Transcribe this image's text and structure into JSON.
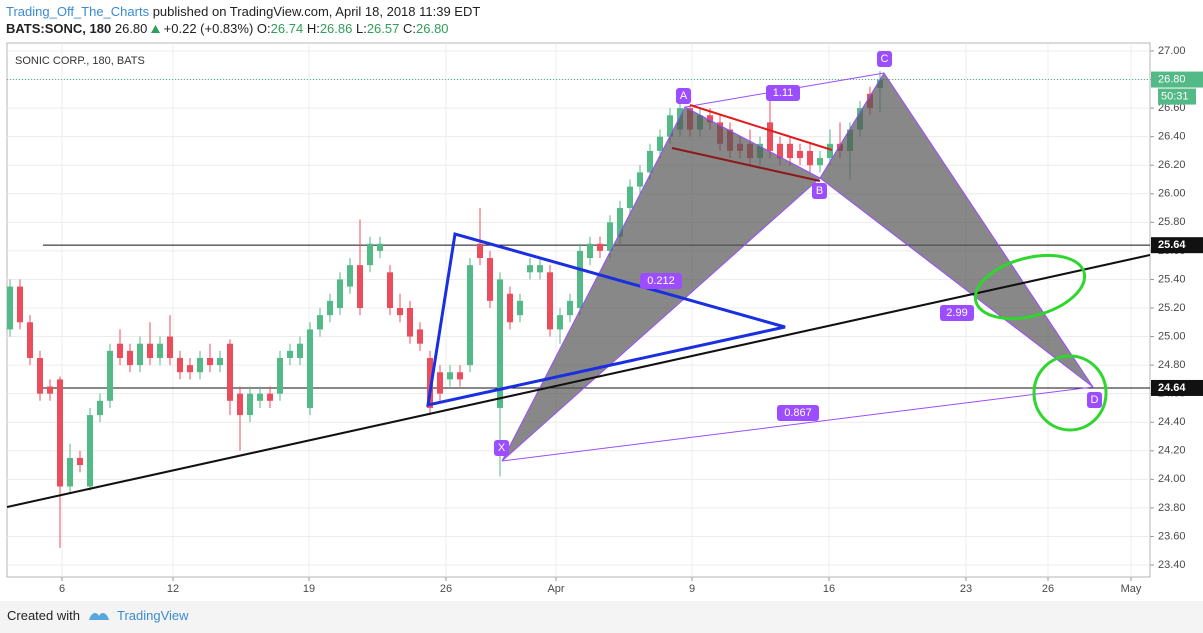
{
  "header": {
    "author": "Trading_Off_The_Charts",
    "published": " published on TradingView.com, April 18, 2018 11:39 EDT",
    "symbol": "BATS:SONC, 180",
    "last": "26.80",
    "change": "+0.22 (+0.83%)",
    "o_label": "O:",
    "o": "26.74",
    "h_label": "H:",
    "h": "26.86",
    "l_label": "L:",
    "l": "26.57",
    "c_label": "C:",
    "c": "26.80"
  },
  "footer": {
    "created": "Created with",
    "brand": "TradingView"
  },
  "chart_data": {
    "type": "candlestick",
    "title": "SONIC CORP., 180, BATS",
    "series": [
      {
        "name": "SONC",
        "up_color": "#53b987",
        "down_color": "#eb4d5c",
        "values": [
          [
            25.05,
            25.4,
            25.0,
            25.35
          ],
          [
            25.35,
            25.4,
            25.05,
            25.1
          ],
          [
            25.1,
            25.15,
            24.8,
            24.85
          ],
          [
            24.85,
            24.9,
            24.55,
            24.6
          ],
          [
            24.65,
            24.7,
            24.55,
            24.6
          ],
          [
            24.7,
            24.72,
            23.52,
            23.95
          ],
          [
            23.95,
            24.25,
            23.9,
            24.15
          ],
          [
            24.15,
            24.2,
            24.05,
            24.1
          ],
          [
            23.95,
            24.5,
            23.92,
            24.45
          ],
          [
            24.45,
            24.6,
            24.4,
            24.55
          ],
          [
            24.55,
            24.95,
            24.5,
            24.9
          ],
          [
            24.95,
            25.05,
            24.8,
            24.85
          ],
          [
            24.9,
            24.95,
            24.75,
            24.8
          ],
          [
            24.8,
            25.0,
            24.75,
            24.95
          ],
          [
            24.95,
            25.1,
            24.8,
            24.85
          ],
          [
            24.85,
            25.0,
            24.8,
            24.95
          ],
          [
            25.0,
            25.15,
            24.8,
            24.85
          ],
          [
            24.85,
            24.9,
            24.7,
            24.75
          ],
          [
            24.8,
            24.85,
            24.7,
            24.75
          ],
          [
            24.75,
            24.9,
            24.7,
            24.85
          ],
          [
            24.85,
            24.95,
            24.75,
            24.8
          ],
          [
            24.8,
            24.9,
            24.75,
            24.85
          ],
          [
            24.95,
            24.98,
            24.45,
            24.55
          ],
          [
            24.6,
            24.65,
            24.2,
            24.45
          ],
          [
            24.45,
            24.65,
            24.4,
            24.6
          ],
          [
            24.55,
            24.65,
            24.5,
            24.6
          ],
          [
            24.6,
            24.65,
            24.5,
            24.55
          ],
          [
            24.6,
            24.9,
            24.55,
            24.85
          ],
          [
            24.85,
            24.95,
            24.8,
            24.9
          ],
          [
            24.85,
            25.0,
            24.8,
            24.95
          ],
          [
            24.5,
            25.1,
            24.45,
            25.05
          ],
          [
            25.05,
            25.2,
            25.0,
            25.15
          ],
          [
            25.15,
            25.3,
            25.1,
            25.25
          ],
          [
            25.2,
            25.45,
            25.15,
            25.4
          ],
          [
            25.35,
            25.55,
            25.3,
            25.5
          ],
          [
            25.5,
            25.82,
            25.15,
            25.2
          ],
          [
            25.5,
            25.7,
            25.45,
            25.65
          ],
          [
            25.6,
            25.7,
            25.55,
            25.65
          ],
          [
            25.45,
            25.5,
            25.15,
            25.2
          ],
          [
            25.2,
            25.3,
            25.1,
            25.15
          ],
          [
            25.2,
            25.25,
            24.95,
            25.0
          ],
          [
            25.05,
            25.1,
            24.9,
            24.95
          ],
          [
            24.85,
            24.9,
            24.45,
            24.5
          ],
          [
            24.75,
            24.8,
            24.55,
            24.6
          ],
          [
            24.7,
            24.8,
            24.65,
            24.75
          ],
          [
            24.75,
            24.8,
            24.65,
            24.7
          ],
          [
            24.8,
            25.55,
            24.75,
            25.5
          ],
          [
            25.65,
            25.9,
            25.5,
            25.55
          ],
          [
            25.55,
            25.6,
            25.2,
            25.25
          ],
          [
            24.5,
            25.45,
            24.02,
            25.4
          ],
          [
            25.3,
            25.35,
            25.05,
            25.1
          ],
          [
            25.15,
            25.3,
            25.1,
            25.25
          ],
          [
            25.45,
            25.55,
            25.4,
            25.5
          ],
          [
            25.45,
            25.55,
            25.4,
            25.5
          ],
          [
            25.45,
            25.5,
            25.0,
            25.05
          ],
          [
            25.05,
            25.2,
            24.95,
            25.15
          ],
          [
            25.15,
            25.3,
            25.1,
            25.25
          ],
          [
            25.2,
            25.65,
            25.15,
            25.6
          ],
          [
            25.55,
            25.7,
            25.5,
            25.65
          ],
          [
            25.65,
            25.7,
            25.55,
            25.6
          ],
          [
            25.6,
            25.85,
            25.55,
            25.8
          ],
          [
            25.7,
            25.95,
            25.65,
            25.9
          ],
          [
            25.9,
            26.1,
            25.85,
            26.05
          ],
          [
            26.05,
            26.2,
            26.0,
            26.15
          ],
          [
            26.15,
            26.35,
            26.1,
            26.3
          ],
          [
            26.3,
            26.45,
            26.25,
            26.4
          ],
          [
            26.4,
            26.6,
            26.35,
            26.55
          ],
          [
            26.45,
            26.65,
            26.4,
            26.6
          ],
          [
            26.6,
            26.62,
            26.4,
            26.45
          ],
          [
            26.45,
            26.6,
            26.4,
            26.55
          ],
          [
            26.55,
            26.6,
            26.45,
            26.5
          ],
          [
            26.5,
            26.55,
            26.3,
            26.35
          ],
          [
            26.45,
            26.5,
            26.25,
            26.3
          ],
          [
            26.35,
            26.4,
            26.25,
            26.3
          ],
          [
            26.35,
            26.45,
            26.2,
            26.25
          ],
          [
            26.25,
            26.4,
            26.2,
            26.35
          ],
          [
            26.5,
            26.75,
            26.25,
            26.3
          ],
          [
            26.35,
            26.4,
            26.2,
            26.25
          ],
          [
            26.35,
            26.4,
            26.2,
            26.25
          ],
          [
            26.3,
            26.35,
            26.2,
            26.25
          ],
          [
            26.3,
            26.35,
            26.15,
            26.2
          ],
          [
            26.2,
            26.3,
            26.15,
            26.25
          ],
          [
            26.25,
            26.45,
            26.2,
            26.35
          ],
          [
            26.35,
            26.5,
            26.25,
            26.3
          ],
          [
            26.3,
            26.5,
            26.1,
            26.45
          ],
          [
            26.45,
            26.65,
            26.4,
            26.6
          ],
          [
            26.7,
            26.75,
            26.55,
            26.6
          ],
          [
            26.74,
            26.86,
            26.57,
            26.8
          ]
        ]
      }
    ],
    "xlim": [
      -0.3,
      114
    ],
    "xticks": [
      {
        "value": 5.2,
        "label": "6"
      },
      {
        "value": 16.3,
        "label": "12"
      },
      {
        "value": 29.9,
        "label": "19"
      },
      {
        "value": 43.6,
        "label": "26"
      },
      {
        "value": 54.6,
        "label": "Apr"
      },
      {
        "value": 68.2,
        "label": "9"
      },
      {
        "value": 81.9,
        "label": "16"
      },
      {
        "value": 95.6,
        "label": "23"
      },
      {
        "value": 103.8,
        "label": "26"
      },
      {
        "value": 112.1,
        "label": "May"
      }
    ],
    "ylim": [
      23.316,
      27.056
    ],
    "yticks": [
      {
        "value": 23.4,
        "label": "23.40"
      },
      {
        "value": 23.6,
        "label": "23.60"
      },
      {
        "value": 23.8,
        "label": "23.80"
      },
      {
        "value": 24,
        "label": "24.00"
      },
      {
        "value": 24.2,
        "label": "24.20"
      },
      {
        "value": 24.4,
        "label": "24.40"
      },
      {
        "value": 24.6,
        "label": "24.60"
      },
      {
        "value": 24.8,
        "label": "24.80"
      },
      {
        "value": 25,
        "label": "25.00"
      },
      {
        "value": 25.2,
        "label": "25.20"
      },
      {
        "value": 25.4,
        "label": "25.40"
      },
      {
        "value": 25.6,
        "label": "25.60"
      },
      {
        "value": 25.8,
        "label": "25.80"
      },
      {
        "value": 26,
        "label": "26.00"
      },
      {
        "value": 26.2,
        "label": "26.20"
      },
      {
        "value": 26.4,
        "label": "26.40"
      },
      {
        "value": 26.6,
        "label": "26.60"
      },
      {
        "value": 26.8,
        "label": "26.80"
      },
      {
        "value": 27,
        "label": "27.00"
      }
    ],
    "grid": true,
    "last_price": {
      "value": 26.8,
      "label": "26.80"
    },
    "countdown": "50:31",
    "hlines": [
      25.64,
      24.64
    ],
    "pattern_labels": [
      "X",
      "A",
      "B",
      "C",
      "D"
    ],
    "ratios": [
      "0.212",
      "1.11",
      "2.99",
      "0.867"
    ]
  }
}
